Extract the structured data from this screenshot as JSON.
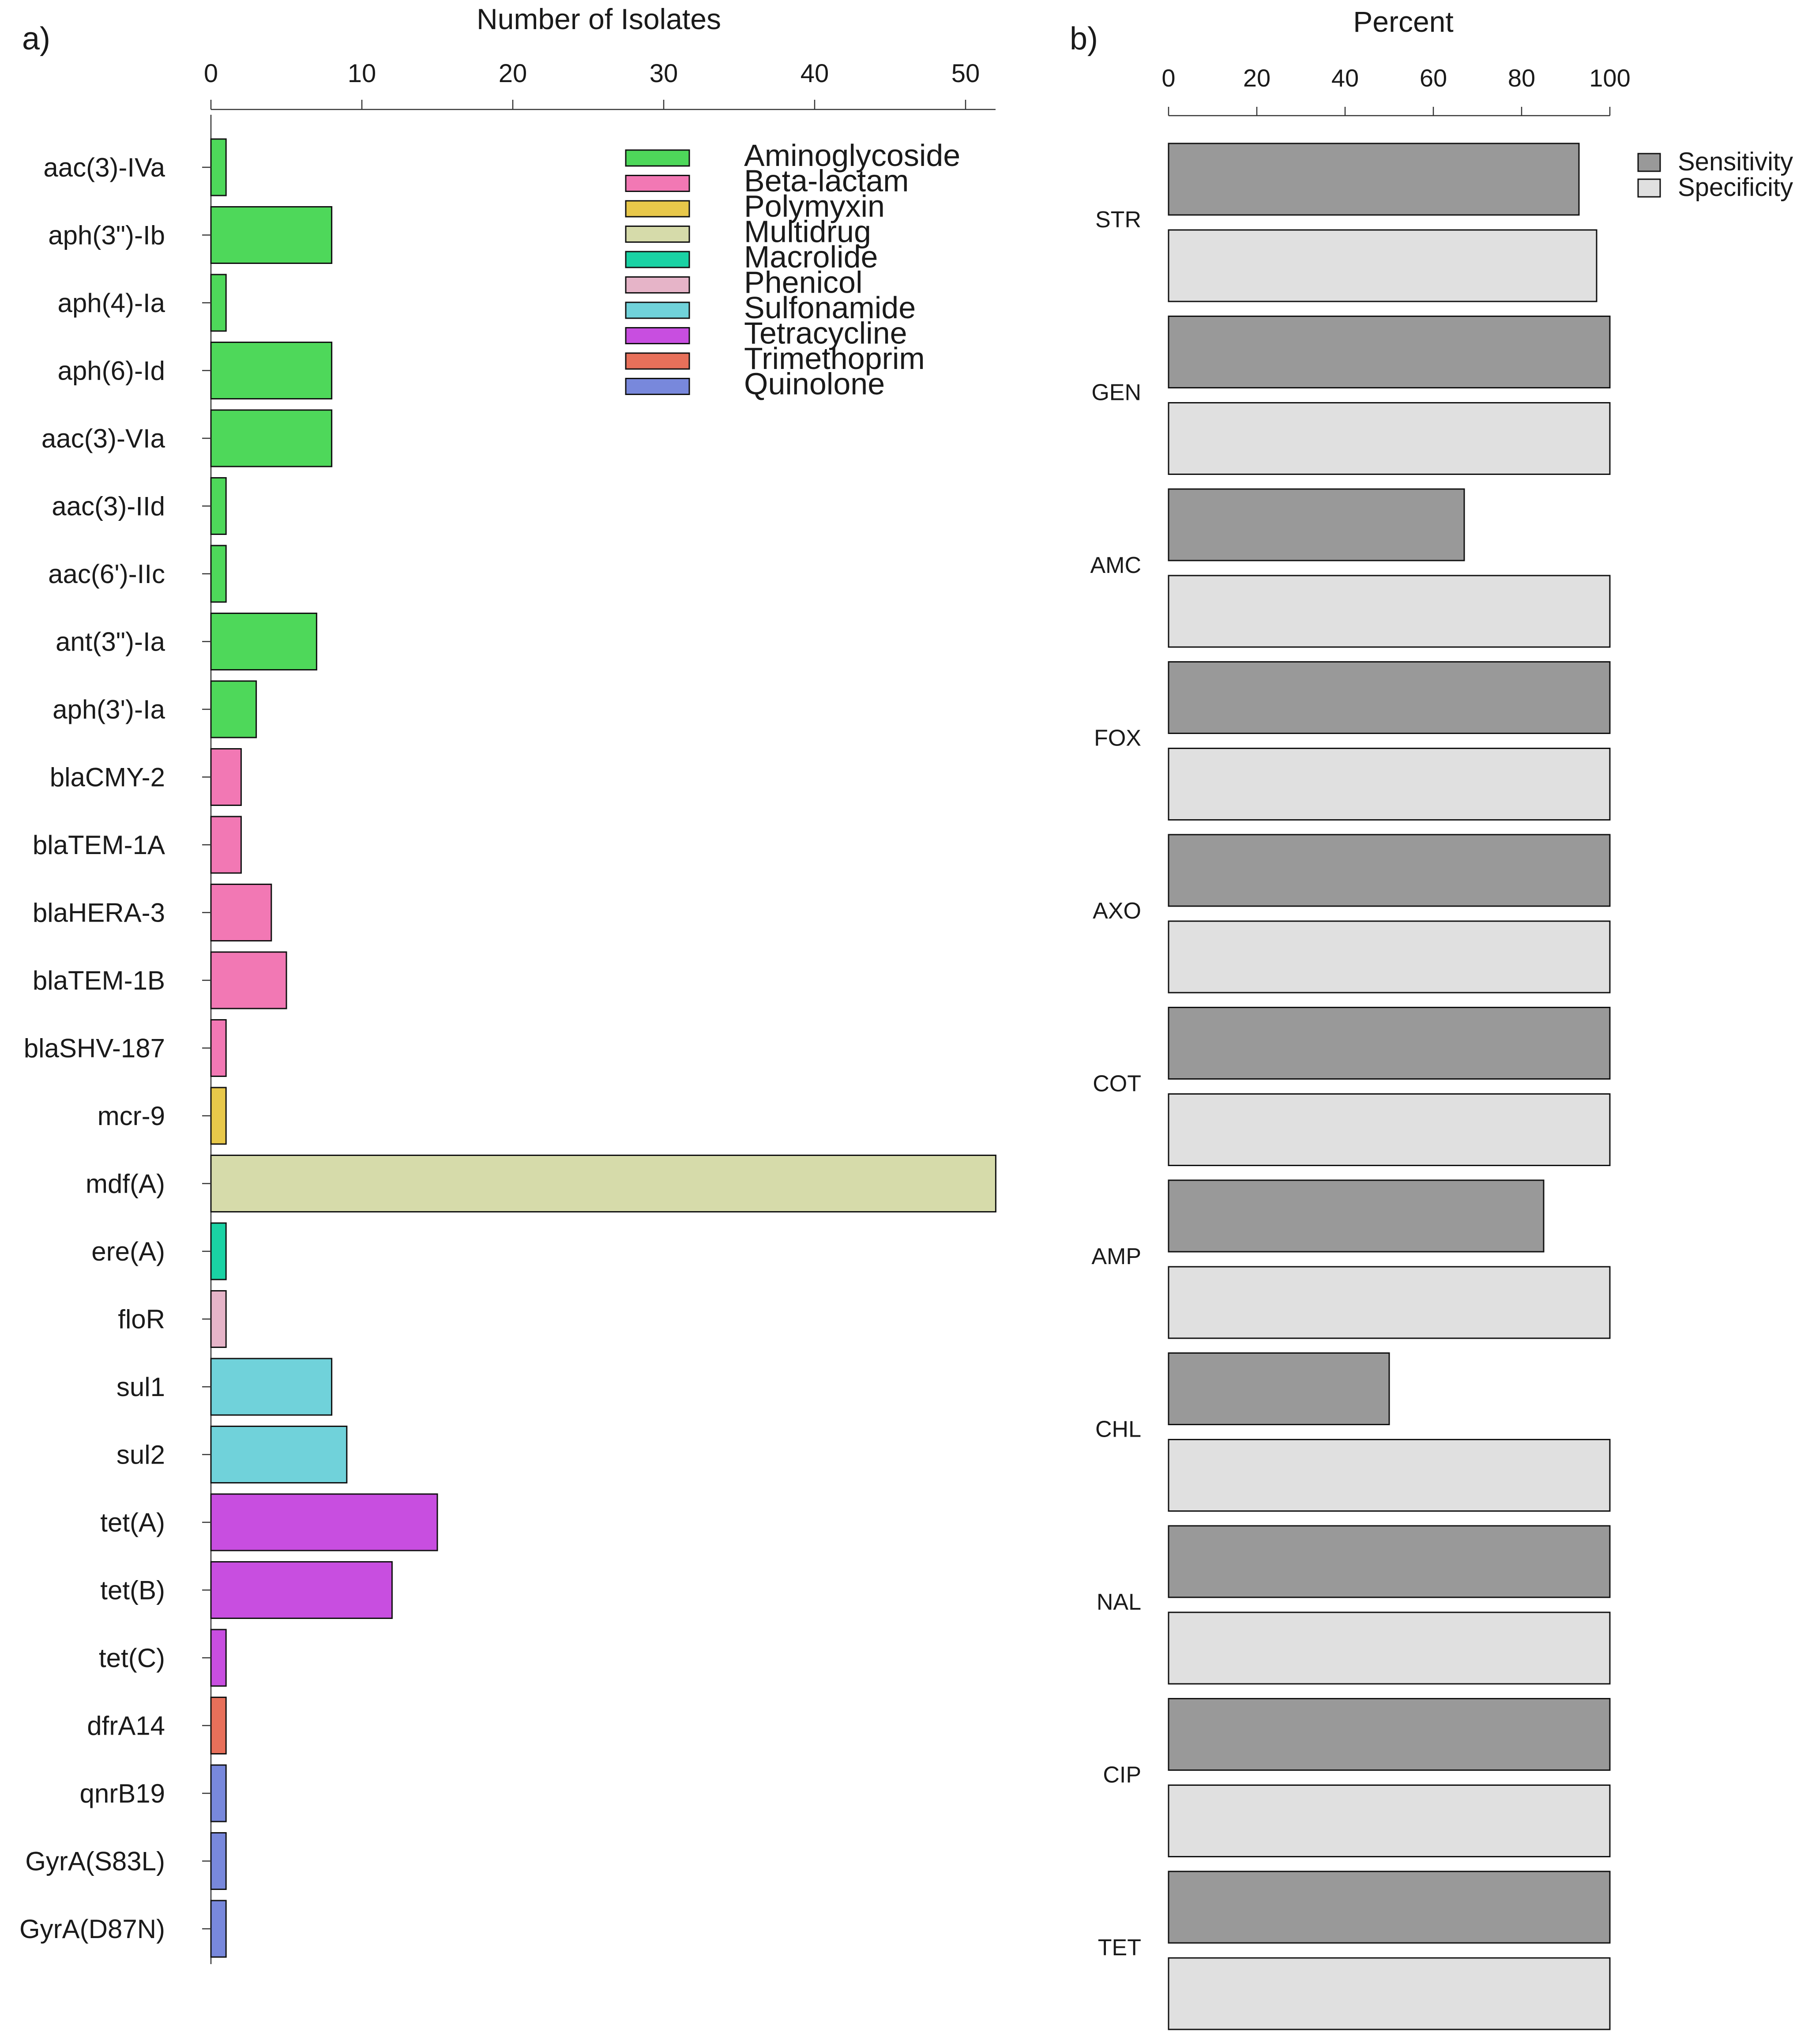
{
  "panels": [
    {
      "label": "a)",
      "chart_data": {
        "type": "bar",
        "orientation": "horizontal",
        "title": "",
        "xlabel": "Number of Isolates",
        "ylabel": "",
        "xlim": [
          0,
          52
        ],
        "xticks": [
          "0",
          "10",
          "20",
          "30",
          "40",
          "50"
        ],
        "grid": false,
        "legend_position": "top-right",
        "classes": [
          {
            "name": "Aminoglycoside",
            "color": "#4ed85a"
          },
          {
            "name": "Beta-lactam",
            "color": "#f278b4"
          },
          {
            "name": "Polymyxin",
            "color": "#e8c84a"
          },
          {
            "name": "Multidrug",
            "color": "#d6dbaa"
          },
          {
            "name": "Macrolide",
            "color": "#1ad2a4"
          },
          {
            "name": "Phenicol",
            "color": "#e6b4c8"
          },
          {
            "name": "Sulfonamide",
            "color": "#70d2da"
          },
          {
            "name": "Tetracycline",
            "color": "#c84ee0"
          },
          {
            "name": "Trimethoprim",
            "color": "#e8705a"
          },
          {
            "name": "Quinolone",
            "color": "#7888dc"
          }
        ],
        "genes": [
          {
            "name": "aac(3)-IVa",
            "value": 1,
            "class": "Aminoglycoside"
          },
          {
            "name": "aph(3\")-Ib",
            "value": 8,
            "class": "Aminoglycoside"
          },
          {
            "name": "aph(4)-Ia",
            "value": 1,
            "class": "Aminoglycoside"
          },
          {
            "name": "aph(6)-Id",
            "value": 8,
            "class": "Aminoglycoside"
          },
          {
            "name": "aac(3)-VIa",
            "value": 8,
            "class": "Aminoglycoside"
          },
          {
            "name": "aac(3)-IId",
            "value": 1,
            "class": "Aminoglycoside"
          },
          {
            "name": "aac(6')-IIc",
            "value": 1,
            "class": "Aminoglycoside"
          },
          {
            "name": "ant(3\")-Ia",
            "value": 7,
            "class": "Aminoglycoside"
          },
          {
            "name": "aph(3')-Ia",
            "value": 3,
            "class": "Aminoglycoside"
          },
          {
            "name": "blaCMY-2",
            "value": 2,
            "class": "Beta-lactam"
          },
          {
            "name": "blaTEM-1A",
            "value": 2,
            "class": "Beta-lactam"
          },
          {
            "name": "blaHERA-3",
            "value": 4,
            "class": "Beta-lactam"
          },
          {
            "name": "blaTEM-1B",
            "value": 5,
            "class": "Beta-lactam"
          },
          {
            "name": "blaSHV-187",
            "value": 1,
            "class": "Beta-lactam"
          },
          {
            "name": "mcr-9",
            "value": 1,
            "class": "Polymyxin"
          },
          {
            "name": "mdf(A)",
            "value": 52,
            "class": "Multidrug"
          },
          {
            "name": "ere(A)",
            "value": 1,
            "class": "Macrolide"
          },
          {
            "name": "floR",
            "value": 1,
            "class": "Phenicol"
          },
          {
            "name": "sul1",
            "value": 8,
            "class": "Sulfonamide"
          },
          {
            "name": "sul2",
            "value": 9,
            "class": "Sulfonamide"
          },
          {
            "name": "tet(A)",
            "value": 15,
            "class": "Tetracycline"
          },
          {
            "name": "tet(B)",
            "value": 12,
            "class": "Tetracycline"
          },
          {
            "name": "tet(C)",
            "value": 1,
            "class": "Tetracycline"
          },
          {
            "name": "dfrA14",
            "value": 1,
            "class": "Trimethoprim"
          },
          {
            "name": "qnrB19",
            "value": 1,
            "class": "Quinolone"
          },
          {
            "name": "GyrA(S83L)",
            "value": 1,
            "class": "Quinolone"
          },
          {
            "name": "GyrA(D87N)",
            "value": 1,
            "class": "Quinolone"
          }
        ]
      }
    },
    {
      "label": "b)",
      "chart_data": {
        "type": "bar",
        "orientation": "horizontal",
        "title": "",
        "xlabel": "Percent",
        "ylabel": "",
        "xlim": [
          0,
          100
        ],
        "xticks": [
          "0",
          "20",
          "40",
          "60",
          "80",
          "100"
        ],
        "grid": false,
        "legend_position": "top-right",
        "categories": [
          "STR",
          "GEN",
          "AMC",
          "FOX",
          "AXO",
          "COT",
          "AMP",
          "CHL",
          "NAL",
          "CIP",
          "TET"
        ],
        "series": [
          {
            "name": "Sensitivity",
            "color": "#999999",
            "values": [
              93,
              100,
              67,
              100,
              100,
              100,
              85,
              50,
              100,
              100,
              100
            ]
          },
          {
            "name": "Specificity",
            "color": "#e0e0e0",
            "values": [
              97,
              100,
              100,
              100,
              100,
              100,
              100,
              100,
              100,
              100,
              100
            ]
          }
        ]
      }
    }
  ]
}
